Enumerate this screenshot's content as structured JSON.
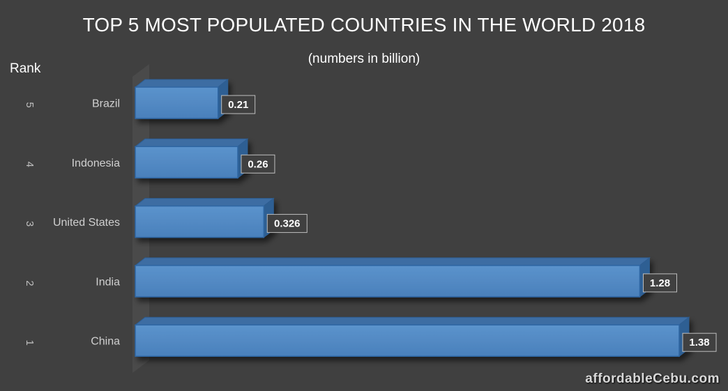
{
  "chart_data": {
    "type": "bar",
    "orientation": "horizontal",
    "title": "TOP 5 MOST POPULATED COUNTRIES IN THE WORLD 2018",
    "subtitle": "(numbers in billion)",
    "ylabel": "Rank",
    "categories": [
      "China",
      "India",
      "United States",
      "Indonesia",
      "Brazil"
    ],
    "ranks": [
      "1",
      "2",
      "3",
      "4",
      "5"
    ],
    "values": [
      1.38,
      1.28,
      0.326,
      0.26,
      0.21
    ],
    "value_labels": [
      "1.38",
      "1.28",
      "0.326",
      "0.26",
      "0.21"
    ],
    "xlim": [
      0,
      1.38
    ],
    "grid": false,
    "legend": "none",
    "bar_color": "#4f81bd",
    "background_color": "#404040"
  },
  "watermark": "affordableCebu.com"
}
